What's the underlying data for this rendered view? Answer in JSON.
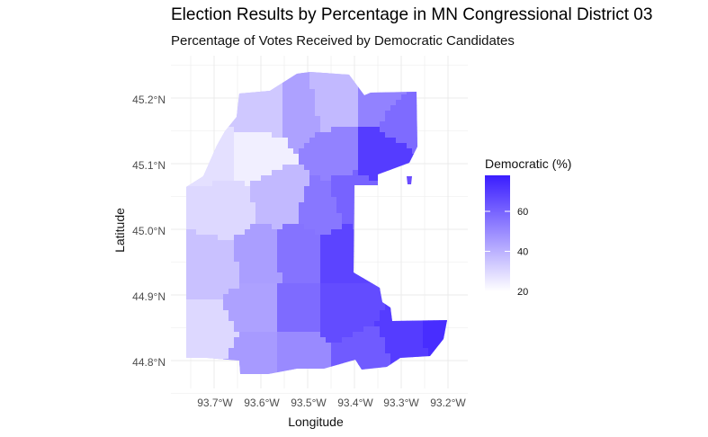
{
  "chart_data": {
    "type": "map",
    "title": "Election Results by Percentage in MN Congressional District 03",
    "subtitle": "Percentage of Votes Received by Democratic Candidates",
    "xlabel": "Longitude",
    "ylabel": "Latitude",
    "x_ticks": [
      "93.7°W",
      "93.6°W",
      "93.5°W",
      "93.4°W",
      "93.3°W",
      "93.2°W"
    ],
    "y_ticks": [
      "45.2°N",
      "45.1°N",
      "45.0°N",
      "44.9°N",
      "44.8°N"
    ],
    "legend": {
      "title": "Democratic (%)",
      "ticks": [
        "60",
        "40",
        "20"
      ],
      "range": [
        20,
        78
      ],
      "low_color": "#ffffff",
      "high_color": "#3a1dff"
    },
    "regions": [
      {
        "lon": -93.445,
        "lat": 45.185,
        "value": 38
      },
      {
        "lon": -93.34,
        "lat": 45.19,
        "value": 52
      },
      {
        "lon": -93.31,
        "lat": 45.17,
        "value": 58
      },
      {
        "lon": -93.355,
        "lat": 45.12,
        "value": 70
      },
      {
        "lon": -93.44,
        "lat": 45.12,
        "value": 52
      },
      {
        "lon": -93.515,
        "lat": 45.175,
        "value": 44
      },
      {
        "lon": -93.6,
        "lat": 45.175,
        "value": 34
      },
      {
        "lon": -93.605,
        "lat": 45.115,
        "value": 24
      },
      {
        "lon": -93.7,
        "lat": 45.115,
        "value": 28
      },
      {
        "lon": -93.675,
        "lat": 45.03,
        "value": 30
      },
      {
        "lon": -93.56,
        "lat": 45.05,
        "value": 38
      },
      {
        "lon": -93.465,
        "lat": 45.03,
        "value": 55
      },
      {
        "lon": -93.41,
        "lat": 45.045,
        "value": 60
      },
      {
        "lon": -93.42,
        "lat": 44.965,
        "value": 68
      },
      {
        "lon": -93.52,
        "lat": 44.965,
        "value": 56
      },
      {
        "lon": -93.605,
        "lat": 44.96,
        "value": 45
      },
      {
        "lon": -93.7,
        "lat": 44.945,
        "value": 36
      },
      {
        "lon": -93.705,
        "lat": 44.84,
        "value": 30
      },
      {
        "lon": -93.615,
        "lat": 44.875,
        "value": 44
      },
      {
        "lon": -93.615,
        "lat": 44.81,
        "value": 46
      },
      {
        "lon": -93.52,
        "lat": 44.87,
        "value": 58
      },
      {
        "lon": -93.52,
        "lat": 44.81,
        "value": 50
      },
      {
        "lon": -93.42,
        "lat": 44.87,
        "value": 66
      },
      {
        "lon": -93.38,
        "lat": 44.81,
        "value": 62
      },
      {
        "lon": -93.29,
        "lat": 44.835,
        "value": 70
      },
      {
        "lon": -93.21,
        "lat": 44.84,
        "value": 74
      }
    ]
  }
}
